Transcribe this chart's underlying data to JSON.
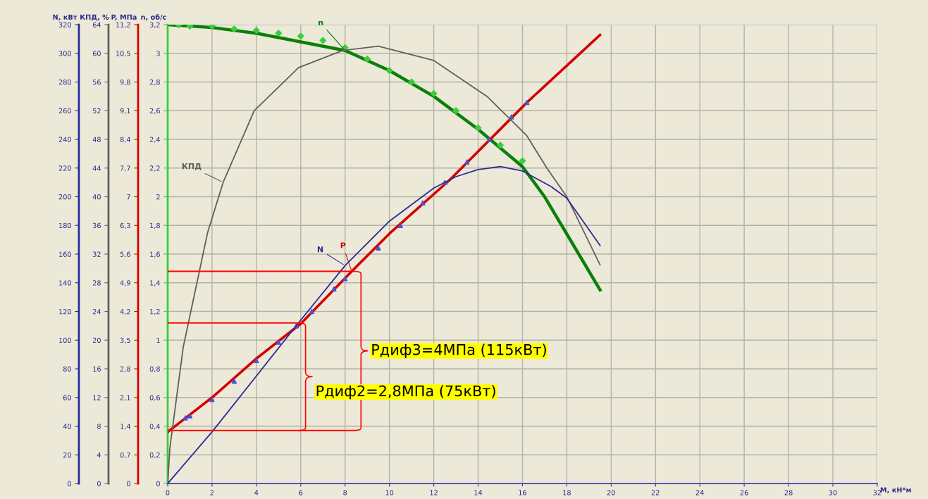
{
  "chart_data": [
    {
      "type": "line",
      "xlabel": "M, кН*м",
      "ylabel": "n, об/с",
      "y2label": "P, МПа",
      "xlim": [
        0,
        32
      ],
      "xticks": [
        0,
        2,
        4,
        6,
        8,
        10,
        12,
        14,
        16,
        18,
        20,
        22,
        24,
        26,
        28,
        30,
        32
      ],
      "grid": true,
      "ylim": [
        0,
        3.2
      ],
      "yticks": [
        0,
        {
          "value": 0.2,
          "label": "0,2"
        },
        {
          "value": 0.4,
          "label": "0,4"
        },
        {
          "value": 0.6,
          "label": "0,6"
        },
        {
          "value": 0.8,
          "label": "0,8"
        },
        1,
        {
          "value": 1.2,
          "label": "1,2"
        },
        {
          "value": 1.4,
          "label": "1,4"
        },
        {
          "value": 1.6,
          "label": "1,6"
        },
        {
          "value": 1.8,
          "label": "1,8"
        },
        2,
        {
          "value": 2.2,
          "label": "2,2"
        },
        {
          "value": 2.4,
          "label": "2,4"
        },
        {
          "value": 2.6,
          "label": "2,6"
        },
        {
          "value": 2.8,
          "label": "2,8"
        },
        3,
        {
          "value": 3.2,
          "label": "3,2"
        }
      ],
      "y2lim": [
        0,
        11.2
      ],
      "y2ticks": [
        0,
        {
          "value": 0.7,
          "label": "0,7"
        },
        {
          "value": 1.4,
          "label": "1,4"
        },
        {
          "value": 2.1,
          "label": "2,1"
        },
        {
          "value": 2.8,
          "label": "2,8"
        },
        {
          "value": 3.5,
          "label": "3,5"
        },
        {
          "value": 4.2,
          "label": "4,2"
        },
        {
          "value": 4.9,
          "label": "4,9"
        },
        {
          "value": 5.6,
          "label": "5,6"
        },
        {
          "value": 6.3,
          "label": "6,3"
        },
        7,
        {
          "value": 7.7,
          "label": "7,7"
        },
        {
          "value": 8.4,
          "label": "8,4"
        },
        {
          "value": 9.1,
          "label": "9,1"
        },
        {
          "value": 9.8,
          "label": "9,8"
        },
        {
          "value": 10.5,
          "label": "10,5"
        },
        {
          "value": 11.2,
          "label": "11,2"
        }
      ],
      "series": [
        {
          "type": "scatter",
          "color": "#3ccc3c",
          "marker": "diamond",
          "x": [
            0.5,
            1,
            2,
            3,
            4,
            5,
            6,
            7,
            8,
            9,
            10,
            11,
            12,
            13,
            14,
            15,
            16
          ],
          "values": [
            3.2,
            3.19,
            3.19,
            3.17,
            3.16,
            3.14,
            3.12,
            3.09,
            3.04,
            2.96,
            2.88,
            2.8,
            2.72,
            2.6,
            2.48,
            2.36,
            2.25
          ]
        },
        {
          "name": "n",
          "color": "#0a800a",
          "x": [
            0,
            2,
            4,
            6,
            8,
            10,
            12,
            14,
            16,
            17,
            18,
            19.5
          ],
          "values": [
            3.2,
            3.18,
            3.14,
            3.08,
            3.02,
            2.88,
            2.7,
            2.47,
            2.21,
            2.0,
            1.74,
            1.35
          ]
        },
        {
          "name": "P",
          "axis": "y2",
          "color": "#d40000",
          "x": [
            0,
            2,
            4,
            6,
            8.3,
            10,
            12.7,
            16.2,
            19.5
          ],
          "values": [
            1.26,
            2.1,
            3.05,
            3.9,
            5.18,
            6.1,
            7.4,
            9.3,
            10.95
          ]
        },
        {
          "type": "scatter",
          "axis": "y2",
          "color": "#5050d0",
          "marker": "triangle",
          "x": [
            0.8,
            1,
            2,
            3,
            4,
            5,
            5.8,
            6.5,
            7.5,
            8,
            9.5,
            10.5,
            11.5,
            12.5,
            13.5,
            14.5,
            15.5,
            16.2
          ],
          "values": [
            1.6,
            1.65,
            2.05,
            2.5,
            3.0,
            3.45,
            3.85,
            4.2,
            4.75,
            5.0,
            5.75,
            6.3,
            6.85,
            7.35,
            7.85,
            8.4,
            8.95,
            9.3
          ]
        }
      ]
    },
    {
      "type": "line",
      "ylabel": "КПД, %",
      "xlim": [
        0,
        32
      ],
      "ylim": [
        0,
        64
      ],
      "yticks": [
        0,
        4,
        8,
        12,
        16,
        20,
        24,
        28,
        32,
        36,
        40,
        44,
        48,
        52,
        56,
        60,
        64
      ],
      "tick_labels": "y",
      "series": [
        {
          "name": "КПД",
          "color": "#606060",
          "x": [
            0,
            0.1,
            0.7,
            1.8,
            2.5,
            3.9,
            5.9,
            7.9,
            9.5,
            12,
            14.4,
            16.2,
            17.1,
            18,
            19.5
          ],
          "values": [
            0,
            5,
            19,
            35,
            42,
            52,
            58,
            60.4,
            61,
            59,
            54,
            48.5,
            44,
            40,
            30.5
          ]
        }
      ]
    },
    {
      "type": "line",
      "ylabel": "N, кВт",
      "xlim": [
        0,
        32
      ],
      "ylim": [
        0,
        320
      ],
      "yticks": [
        0,
        20,
        40,
        60,
        80,
        100,
        120,
        140,
        160,
        180,
        200,
        220,
        240,
        260,
        280,
        300,
        320
      ],
      "tick_labels": "y",
      "series": [
        {
          "name": "N",
          "color": "#2a2a9a",
          "x": [
            0,
            2,
            4,
            6,
            8,
            10,
            12,
            13,
            14,
            15,
            16,
            17.3,
            18,
            19.5
          ],
          "values": [
            0,
            36,
            75,
            114,
            152,
            183,
            206,
            214,
            219,
            221,
            218,
            207,
            199,
            166
          ]
        },
        {
          "color": "#ff0000",
          "x": [
            0,
            8.4
          ],
          "values": [
            148,
            148
          ]
        },
        {
          "color": "#ff0000",
          "x": [
            0,
            5.9
          ],
          "values": [
            112,
            112
          ]
        },
        {
          "color": "#ff0000",
          "x": [
            0,
            8.4
          ],
          "values": [
            37,
            37
          ]
        }
      ],
      "annotations": [
        "Рдиф3=4МПа (115кВт)",
        "Рдиф2=2,8МПа (75кВт)"
      ]
    }
  ]
}
